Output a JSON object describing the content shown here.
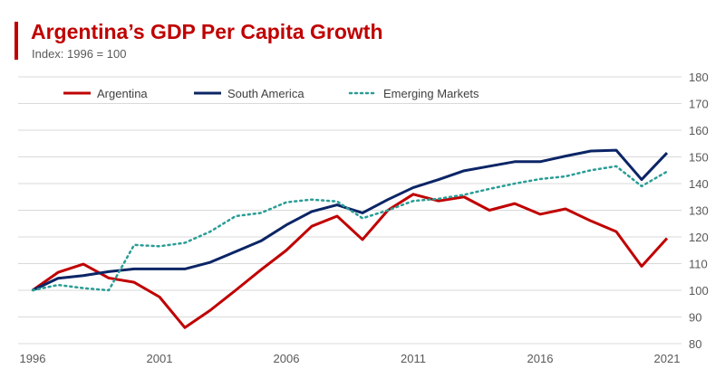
{
  "header": {
    "title": "Argentina’s GDP Per Capita Growth",
    "subtitle": "Index: 1996 = 100"
  },
  "chart_data": {
    "type": "line",
    "title": "Argentina’s GDP Per Capita Growth",
    "subtitle": "Index: 1996 = 100",
    "x": [
      1996,
      1997,
      1998,
      1999,
      2000,
      2001,
      2002,
      2003,
      2004,
      2005,
      2006,
      2007,
      2008,
      2009,
      2010,
      2011,
      2012,
      2013,
      2014,
      2015,
      2016,
      2017,
      2018,
      2019,
      2020,
      2021
    ],
    "xticks": [
      "1996",
      "2001",
      "2006",
      "2011",
      "2016",
      "2021"
    ],
    "yticks": [
      "80",
      "90",
      "100",
      "110",
      "120",
      "130",
      "140",
      "150",
      "160",
      "170",
      "180"
    ],
    "ylim": [
      80,
      180
    ],
    "xlim": [
      1996,
      2021
    ],
    "grid": "horizontal",
    "legend_position": "top",
    "y_axis_side": "right",
    "series": [
      {
        "name": "Argentina",
        "color": "#c00000",
        "style": "solid",
        "values": [
          100,
          106.7,
          109.8,
          104.6,
          103,
          97.5,
          86,
          92.5,
          100,
          107.7,
          115,
          124,
          127.8,
          119,
          130,
          136,
          133.5,
          135,
          130,
          132.5,
          128.5,
          130.5,
          126,
          122,
          109,
          119.5
        ]
      },
      {
        "name": "South America",
        "color": "#0b2566",
        "style": "solid",
        "values": [
          100,
          104.5,
          105.5,
          107,
          108,
          108,
          108,
          110.5,
          114.5,
          118.5,
          124.5,
          129.5,
          132,
          129,
          134,
          138.5,
          141.5,
          144.8,
          146.5,
          148.2,
          148.2,
          150.3,
          152.2,
          152.5,
          141.5,
          151.5
        ]
      },
      {
        "name": "Emerging Markets",
        "color": "#2a9d96",
        "style": "dotted",
        "values": [
          100,
          102,
          100.8,
          100,
          117,
          116.5,
          117.8,
          122,
          127.8,
          129,
          133,
          134,
          133.3,
          127,
          130,
          133.5,
          134.3,
          135.8,
          138,
          140,
          141.7,
          142.7,
          145,
          146.5,
          139,
          144.5
        ]
      }
    ]
  }
}
